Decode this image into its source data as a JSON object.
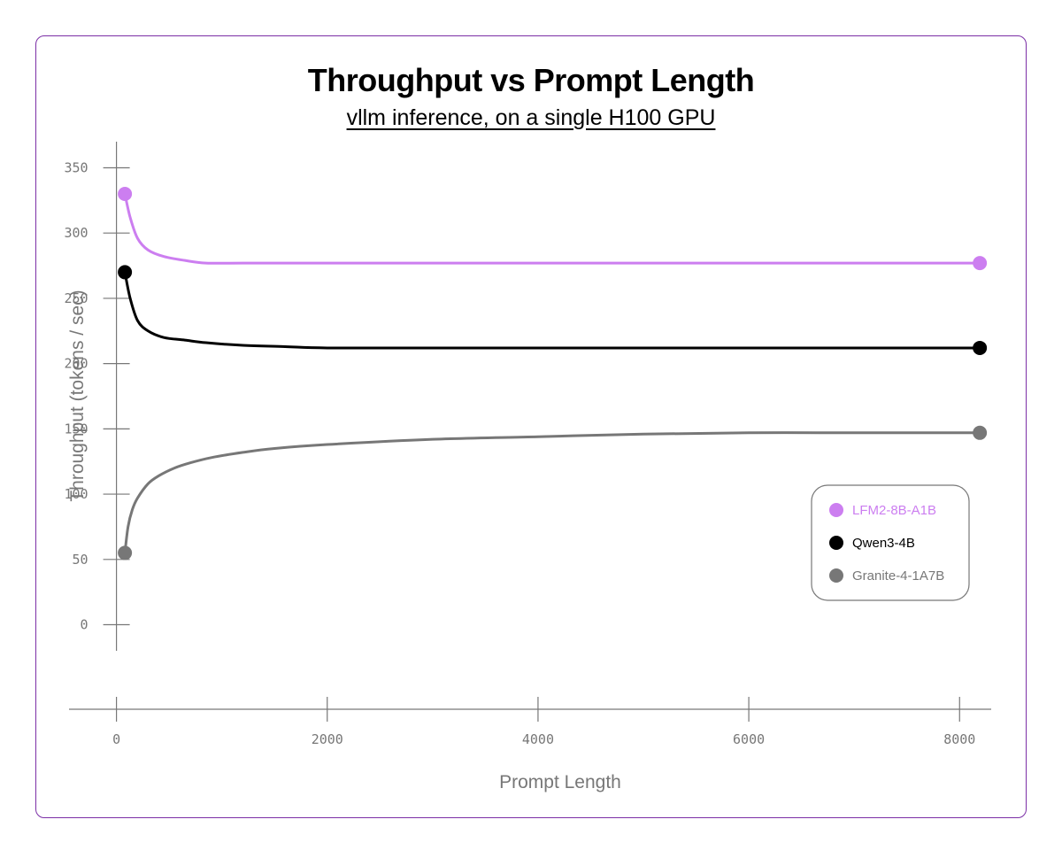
{
  "chart_data": {
    "type": "line",
    "title": "Throughput vs Prompt Length",
    "subtitle": "vllm inference, on a single H100 GPU",
    "xlabel": "Prompt Length",
    "ylabel": "Throughput (tokens / sec)",
    "xlim": [
      -450,
      8300
    ],
    "ylim": [
      -20,
      370
    ],
    "x_ticks": [
      0,
      2000,
      4000,
      6000,
      8000
    ],
    "y_ticks": [
      0,
      50,
      100,
      150,
      200,
      250,
      300,
      350
    ],
    "grid": false,
    "legend_position": "right",
    "series": [
      {
        "name": "LFM2-8B-A1B",
        "color": "#cc7ef0",
        "x": [
          80,
          130,
          200,
          300,
          450,
          650,
          850,
          1200,
          2000,
          3000,
          4000,
          5000,
          6000,
          7000,
          8000,
          8192
        ],
        "y": [
          330,
          312,
          296,
          287,
          282,
          279,
          277,
          277,
          277,
          277,
          277,
          277,
          277,
          277,
          277,
          277
        ]
      },
      {
        "name": "Qwen3-4B",
        "color": "#000000",
        "x": [
          80,
          130,
          200,
          300,
          450,
          650,
          850,
          1200,
          1600,
          2000,
          3000,
          4000,
          5000,
          6000,
          7000,
          8000,
          8192
        ],
        "y": [
          270,
          250,
          233,
          225,
          220,
          218,
          216,
          214,
          213,
          212,
          212,
          212,
          212,
          212,
          212,
          212,
          212
        ]
      },
      {
        "name": "Granite-4-1A7B",
        "color": "#777777",
        "x": [
          80,
          110,
          150,
          200,
          300,
          400,
          550,
          700,
          900,
          1200,
          1500,
          2000,
          3000,
          4000,
          5000,
          6000,
          7000,
          8000,
          8192
        ],
        "y": [
          55,
          75,
          88,
          97,
          108,
          114,
          120,
          124,
          128,
          132,
          135,
          138,
          142,
          144,
          146,
          147,
          147,
          147,
          147
        ]
      }
    ]
  }
}
